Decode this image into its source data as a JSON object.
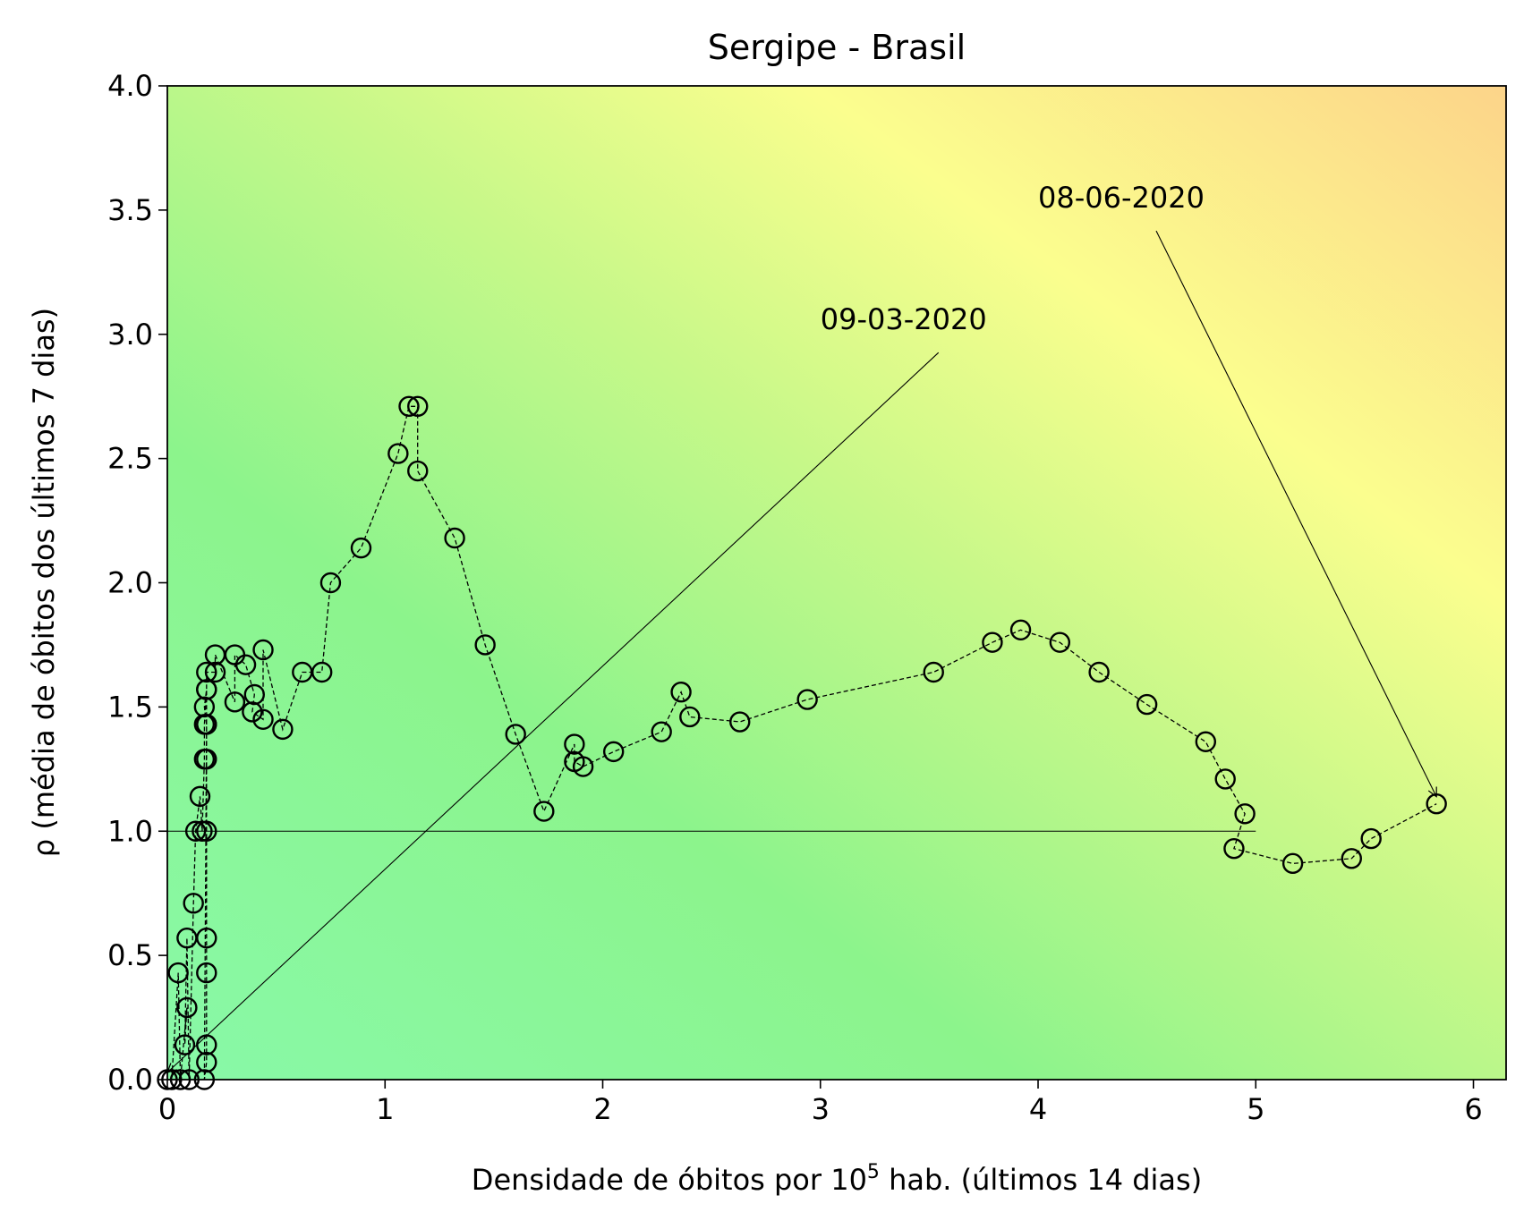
{
  "chart_data": {
    "type": "scatter",
    "title": "Sergipe - Brasil",
    "xlabel": "Densidade de óbitos por 10⁵ hab. (últimos 14 dias)",
    "xlabel_main": "Densidade de óbitos por 10",
    "xlabel_sup": "5",
    "xlabel_rest": " hab. (últimos 14 dias)",
    "ylabel": "ρ (média de óbitos dos últimos 7 dias)",
    "xlim": [
      0,
      6.15
    ],
    "ylim": [
      0,
      4.0
    ],
    "x_ticks": [
      0,
      1,
      2,
      3,
      4,
      5,
      6
    ],
    "x_tick_labels": [
      "0",
      "1",
      "2",
      "3",
      "4",
      "5",
      "6"
    ],
    "y_ticks": [
      0,
      0.5,
      1.0,
      1.5,
      2.0,
      2.5,
      3.0,
      3.5,
      4.0
    ],
    "y_tick_labels": [
      "0.0",
      "0.5",
      "1.0",
      "1.5",
      "2.0",
      "2.5",
      "3.0",
      "3.5",
      "4.0"
    ],
    "grid": false,
    "background": "green-yellow-orange risk gradient",
    "reference_line": {
      "y": 1.0,
      "x_from": 0,
      "x_to": 5.0
    },
    "annotations": [
      {
        "text": "09-03-2020",
        "point": [
          0.0,
          0.0
        ],
        "text_at": [
          3.0,
          3.02
        ]
      },
      {
        "text": "08-06-2020",
        "point": [
          5.83,
          1.11
        ],
        "text_at": [
          4.0,
          3.51
        ]
      }
    ],
    "series": [
      {
        "style": "dashed line with open circle markers",
        "color": "#000000",
        "x": [
          0.0,
          0.02,
          0.05,
          0.06,
          0.09,
          0.08,
          0.09,
          0.1,
          0.12,
          0.13,
          0.15,
          0.16,
          0.17,
          0.17,
          0.18,
          0.18,
          0.18,
          0.18,
          0.18,
          0.18,
          0.18,
          0.18,
          0.17,
          0.18,
          0.17,
          0.18,
          0.18,
          0.22,
          0.22,
          0.31,
          0.31,
          0.36,
          0.4,
          0.39,
          0.44,
          0.44,
          0.53,
          0.62,
          0.71,
          0.75,
          0.89,
          1.06,
          1.11,
          1.15,
          1.15,
          1.32,
          1.46,
          1.6,
          1.73,
          1.87,
          1.87,
          1.91,
          2.05,
          2.27,
          2.36,
          2.4,
          2.63,
          2.94,
          3.52,
          3.79,
          3.92,
          4.1,
          4.28,
          4.5,
          4.77,
          4.86,
          4.95,
          4.9,
          5.17,
          5.44,
          5.53,
          5.83
        ],
        "y": [
          0.0,
          0.0,
          0.43,
          0.0,
          0.29,
          0.14,
          0.57,
          0.0,
          0.71,
          1.0,
          1.14,
          1.0,
          1.29,
          1.43,
          1.57,
          1.43,
          1.29,
          1.0,
          0.57,
          0.43,
          0.14,
          0.07,
          0.0,
          1.43,
          1.5,
          1.57,
          1.64,
          1.64,
          1.71,
          1.52,
          1.71,
          1.67,
          1.55,
          1.48,
          1.45,
          1.73,
          1.41,
          1.64,
          1.64,
          2.0,
          2.14,
          2.52,
          2.71,
          2.71,
          2.45,
          2.18,
          1.75,
          1.39,
          1.08,
          1.35,
          1.28,
          1.26,
          1.32,
          1.4,
          1.56,
          1.46,
          1.44,
          1.53,
          1.64,
          1.76,
          1.81,
          1.76,
          1.64,
          1.51,
          1.36,
          1.21,
          1.07,
          0.93,
          0.87,
          0.89,
          0.97,
          1.11
        ]
      }
    ]
  }
}
